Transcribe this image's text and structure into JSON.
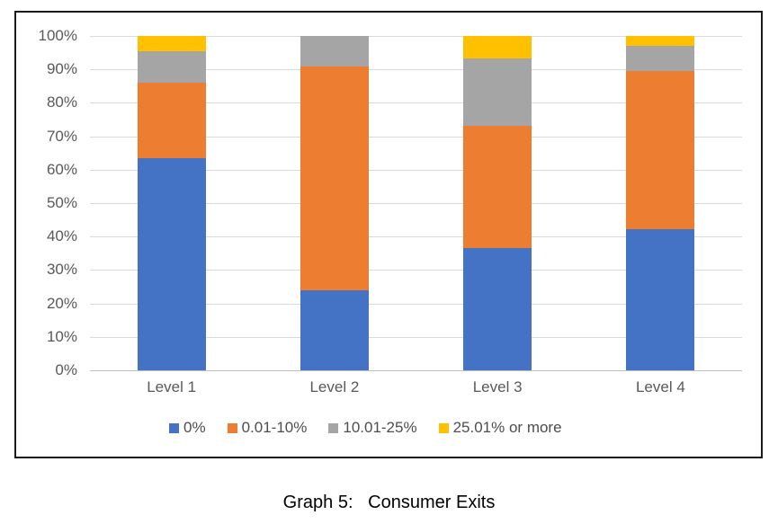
{
  "chart_data": {
    "type": "bar",
    "stacked": true,
    "stacked_mode": "percent",
    "title": "",
    "xlabel": "",
    "ylabel": "",
    "categories": [
      "Level 1",
      "Level 2",
      "Level 3",
      "Level 4"
    ],
    "series": [
      {
        "name": "0%",
        "color": "#4472C4",
        "values": [
          63.5,
          24.0,
          36.6,
          42.2
        ]
      },
      {
        "name": "0.01-10%",
        "color": "#ED7D31",
        "values": [
          22.5,
          67.0,
          36.5,
          47.2
        ]
      },
      {
        "name": "10.01-25%",
        "color": "#A5A5A5",
        "values": [
          9.5,
          9.0,
          20.2,
          7.6
        ]
      },
      {
        "name": "25.01% or more",
        "color": "#FFC000",
        "values": [
          4.5,
          0.0,
          6.7,
          3.0
        ]
      }
    ],
    "y_ticks": [
      "100%",
      "90%",
      "80%",
      "70%",
      "60%",
      "50%",
      "40%",
      "30%",
      "20%",
      "10%",
      "0%"
    ],
    "ylim": [
      0,
      100
    ],
    "grid": "horizontal",
    "legend_position": "bottom"
  },
  "caption": "Graph 5:   Consumer Exits",
  "colors": {
    "gridline": "#d9d9d9",
    "axis_line": "#bfbfbf",
    "frame_border": "#1a1a1a",
    "axis_text": "#595959",
    "legend_text": "#4d4d4d",
    "caption_text": "#000000",
    "background": "#ffffff"
  }
}
